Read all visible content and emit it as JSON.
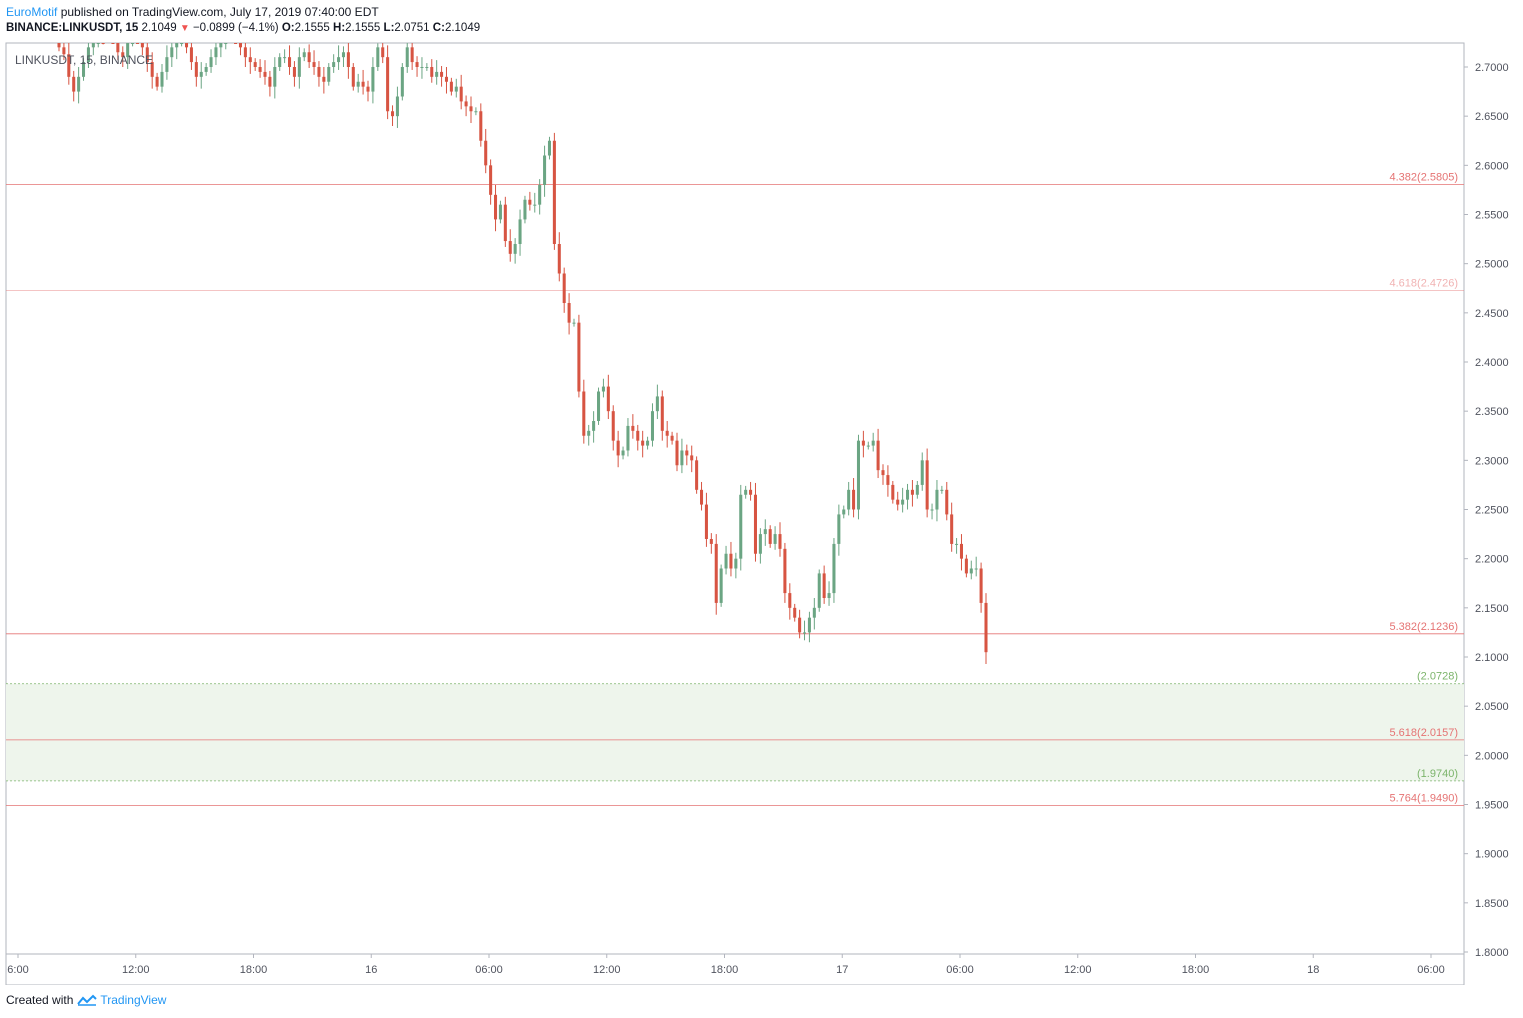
{
  "header": {
    "author": "EuroMotif",
    "published": "published on TradingView.com, July 17, 2019 07:40:00 EDT",
    "symbol": "BINANCE:LINKUSDT, 15",
    "last": "2.1049",
    "change": "−0.0899 (−4.1%)",
    "o_label": "O:",
    "o": "2.1555",
    "h_label": "H:",
    "h": "2.1555",
    "l_label": "L:",
    "l": "2.0751",
    "c_label": "C:",
    "c": "2.1049"
  },
  "footer": {
    "created": "Created with",
    "brand": "TradingView"
  },
  "colors": {
    "up": "#6ba583",
    "down": "#d75442",
    "fib": "#e57373",
    "zone_fill": "#eef5ec",
    "zone_line": "#7cb46b",
    "axis": "#50535e",
    "grid_border": "#b2b5be"
  },
  "chart_data": {
    "type": "candlestick",
    "title": "LINKUSDT, 15, BINANCE",
    "ylim": [
      1.795,
      2.72
    ],
    "x_ticks": [
      "6:00",
      "12:00",
      "18:00",
      "16",
      "06:00",
      "12:00",
      "18:00",
      "17",
      "06:00",
      "12:00",
      "18:00",
      "18",
      "06:00"
    ],
    "y_ticks": [
      "2.7000",
      "2.6500",
      "2.6000",
      "2.5500",
      "2.5000",
      "2.4500",
      "2.4000",
      "2.3500",
      "2.3000",
      "2.2500",
      "2.2000",
      "2.1500",
      "2.1000",
      "2.0500",
      "2.0000",
      "1.9500",
      "1.9000",
      "1.8500",
      "1.8000"
    ],
    "fib_levels": [
      {
        "label": "4.382(2.5805)",
        "value": 2.5805
      },
      {
        "label": "4.618(2.4726)",
        "value": 2.4726
      },
      {
        "label": "5.382(2.1236)",
        "value": 2.1236
      },
      {
        "label": "5.618(2.0157)",
        "value": 2.0157
      },
      {
        "label": "5.764(1.9490)",
        "value": 1.949
      }
    ],
    "zone": {
      "top": 2.0728,
      "bottom": 1.974,
      "top_label": "(2.0728)",
      "bottom_label": "(1.9740)"
    },
    "closes": [
      2.72,
      2.713,
      2.69,
      2.675,
      2.69,
      2.705,
      2.72,
      2.73,
      2.74,
      2.735,
      2.74,
      2.73,
      2.715,
      2.71,
      2.725,
      2.74,
      2.73,
      2.72,
      2.705,
      2.69,
      2.68,
      2.695,
      2.71,
      2.72,
      2.725,
      2.73,
      2.72,
      2.705,
      2.69,
      2.695,
      2.7,
      2.71,
      2.72,
      2.73,
      2.735,
      2.74,
      2.73,
      2.72,
      2.71,
      2.705,
      2.7,
      2.695,
      2.69,
      2.68,
      2.7,
      2.71,
      2.71,
      2.7,
      2.69,
      2.71,
      2.715,
      2.705,
      2.7,
      2.69,
      2.685,
      2.7,
      2.705,
      2.71,
      2.715,
      2.7,
      2.68,
      2.685,
      2.68,
      2.675,
      2.7,
      2.72,
      2.71,
      2.655,
      2.65,
      2.67,
      2.7,
      2.72,
      2.705,
      2.7,
      2.7,
      2.7,
      2.69,
      2.695,
      2.69,
      2.685,
      2.675,
      2.68,
      2.665,
      2.66,
      2.655,
      2.655,
      2.625,
      2.6,
      2.57,
      2.545,
      2.56,
      2.523,
      2.51,
      2.52,
      2.545,
      2.565,
      2.56,
      2.56,
      2.58,
      2.61,
      2.625,
      2.52,
      2.49,
      2.46,
      2.44,
      2.44,
      2.37,
      2.325,
      2.33,
      2.34,
      2.37,
      2.375,
      2.35,
      2.32,
      2.305,
      2.31,
      2.335,
      2.33,
      2.32,
      2.315,
      2.32,
      2.35,
      2.365,
      2.33,
      2.325,
      2.32,
      2.295,
      2.31,
      2.305,
      2.3,
      2.27,
      2.255,
      2.22,
      2.215,
      2.155,
      2.19,
      2.205,
      2.19,
      2.2,
      2.265,
      2.27,
      2.265,
      2.205,
      2.225,
      2.23,
      2.215,
      2.225,
      2.21,
      2.165,
      2.15,
      2.14,
      2.125,
      2.125,
      2.14,
      2.15,
      2.185,
      2.16,
      2.165,
      2.215,
      2.245,
      2.25,
      2.27,
      2.25,
      2.32,
      2.315,
      2.315,
      2.32,
      2.29,
      2.285,
      2.275,
      2.26,
      2.255,
      2.26,
      2.27,
      2.265,
      2.275,
      2.3,
      2.25,
      2.25,
      2.27,
      2.27,
      2.245,
      2.215,
      2.215,
      2.2,
      2.185,
      2.19,
      2.19,
      2.155,
      2.1049
    ]
  }
}
